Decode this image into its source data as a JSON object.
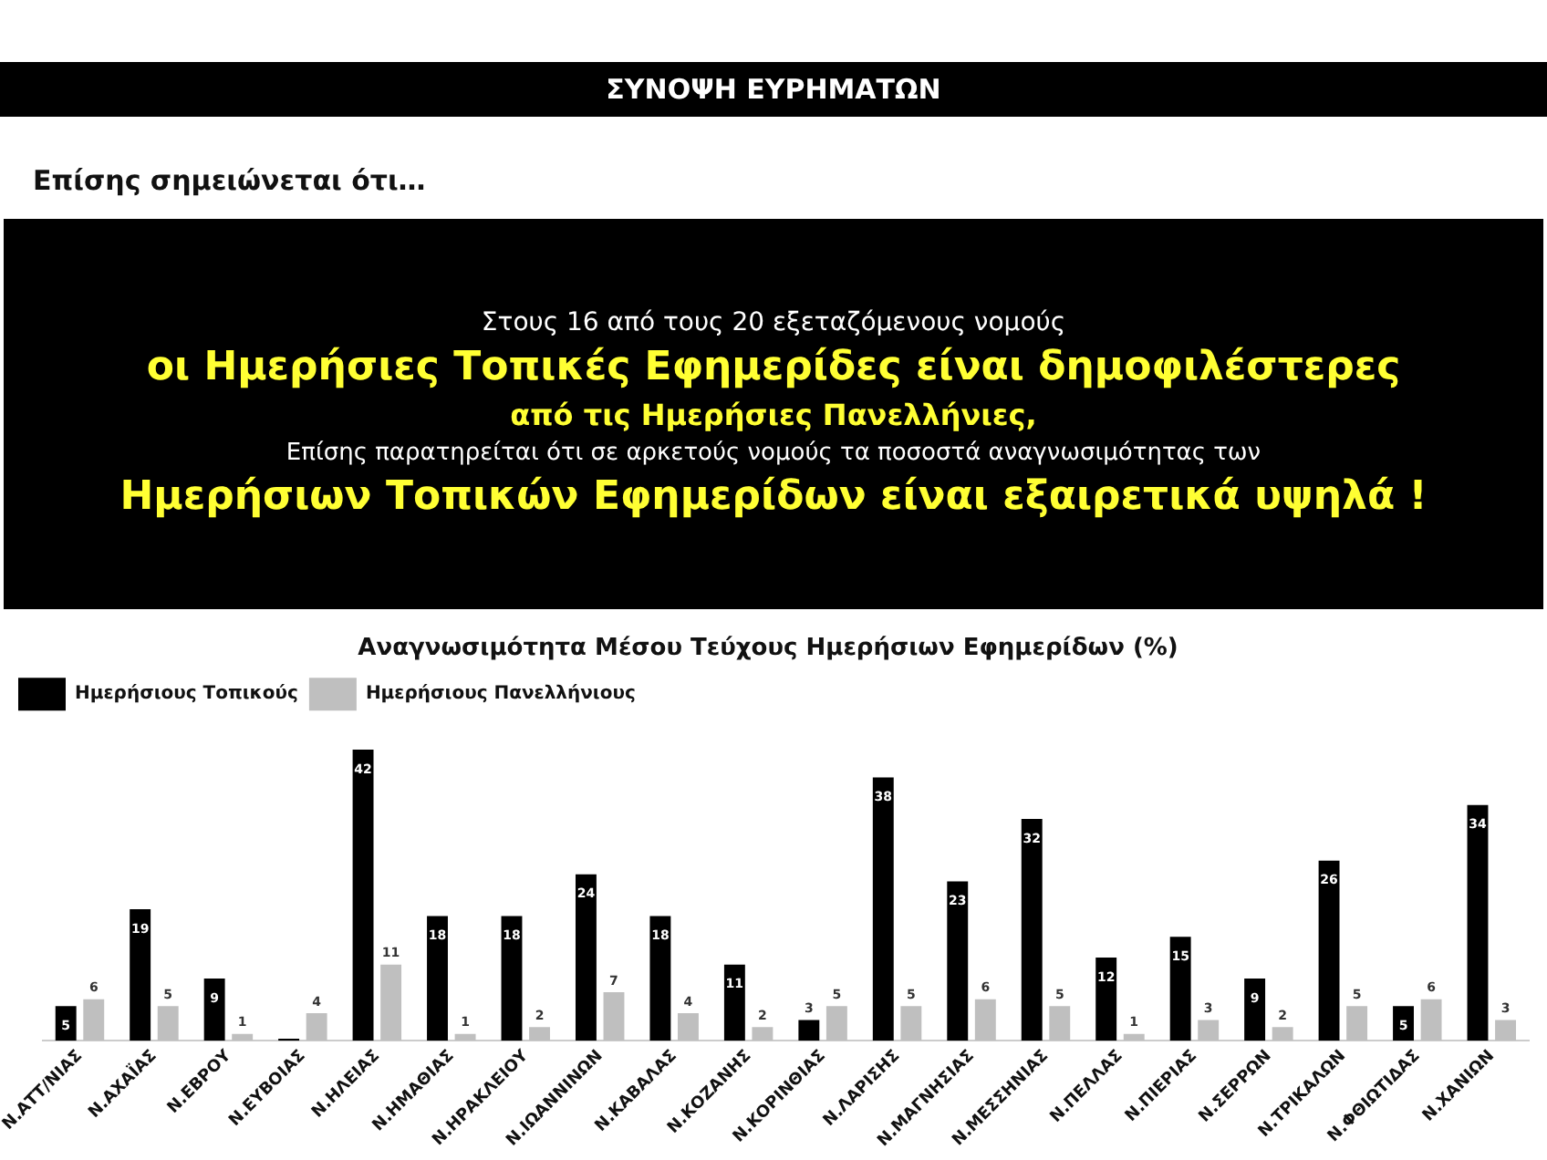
{
  "chart_data": {
    "type": "bar",
    "title": "Αναγνωσιμότητα Μέσου Τεύχους Ημερήσιων Εφημερίδων (%)",
    "annotations": [
      "ΣΥΝΟΨΗ ΕΥΡΗΜΑΤΩΝ",
      "Επίσης σημειώνεται ότι…",
      "Στους 16 από τους 20 εξεταζόμενους νομούς",
      "οι Ημερήσιες Τοπικές Εφημερίδες είναι δημοφιλέστερες",
      "από τις Ημερήσιες Πανελλήνιες,",
      "Επίσης παρατηρείται ότι σε αρκετούς νομούς τα ποσοστά αναγνωσιμότητας των",
      "Ημερήσιων Τοπικών Εφημερίδων είναι εξαιρετικά υψηλά !"
    ],
    "categories": [
      "Ν.ΑΤΤ/ΝΙΑΣ",
      "Ν.ΑΧΑΪΑΣ",
      "Ν.ΕΒΡΟΥ",
      "Ν.ΕΥΒΟΙΑΣ",
      "Ν.ΗΛΕΙΑΣ",
      "Ν.ΗΜΑΘΙΑΣ",
      "Ν.ΗΡΑΚΛΕΙΟΥ",
      "Ν.ΙΩΑΝΝΙΝΩΝ",
      "Ν.ΚΑΒΑΛΑΣ",
      "Ν.ΚΟΖΑΝΗΣ",
      "Ν.ΚΟΡΙΝΘΙΑΣ",
      "Ν.ΛΑΡΙΣΗΣ",
      "Ν.ΜΑΓΝΗΣΙΑΣ",
      "Ν.ΜΕΣΣΗΝΙΑΣ",
      "Ν.ΠΕΛΛΑΣ",
      "Ν.ΠΙΕΡΙΑΣ",
      "Ν.ΣΕΡΡΩΝ",
      "Ν.ΤΡΙΚΑΛΩΝ",
      "Ν.ΦΘΙΩΤΙΔΑΣ",
      "Ν.ΧΑΝΙΩΝ"
    ],
    "series": [
      {
        "name": "Ημερήσιους Τοπικούς",
        "color": "#000000",
        "values": [
          5,
          19,
          9,
          0.3,
          42,
          18,
          18,
          24,
          18,
          11,
          3,
          38,
          23,
          32,
          12,
          15,
          9,
          26,
          5,
          34
        ],
        "value_labels": [
          "5",
          "19",
          "9",
          null,
          "42",
          "18",
          "18",
          "24",
          "18",
          "11",
          "3",
          "38",
          "23",
          "32",
          "12",
          "15",
          "9",
          "26",
          "5",
          "34"
        ]
      },
      {
        "name": "Ημερήσιους Πανελλήνιους",
        "color": "#bfbfbf",
        "values": [
          6,
          5,
          1,
          4,
          11,
          1,
          2,
          7,
          4,
          2,
          5,
          5,
          6,
          5,
          1,
          3,
          2,
          5,
          6,
          3
        ],
        "value_labels": [
          "6",
          "5",
          "1",
          "4",
          "11",
          "1",
          "2",
          "7",
          "4",
          "2",
          "5",
          "5",
          "6",
          "5",
          "1",
          "3",
          "2",
          "5",
          "6",
          "3"
        ]
      }
    ],
    "legend": "top left",
    "grid": false
  }
}
